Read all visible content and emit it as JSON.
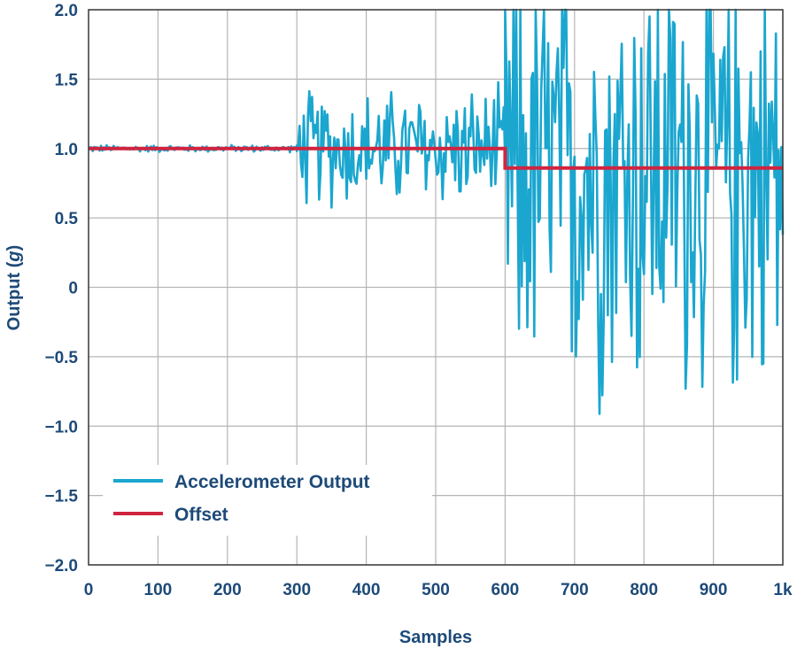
{
  "chart_data": {
    "type": "line",
    "xlabel": "Samples",
    "ylabel_prefix": "Output (",
    "ylabel_unit": "g",
    "ylabel_suffix": ")",
    "xlim": [
      0,
      1000
    ],
    "ylim": [
      -2.0,
      2.0
    ],
    "x_ticks": [
      0,
      100,
      200,
      300,
      400,
      500,
      600,
      700,
      800,
      900,
      1000
    ],
    "x_tick_labels": [
      "0",
      "100",
      "200",
      "300",
      "400",
      "500",
      "600",
      "700",
      "800",
      "900",
      "1k"
    ],
    "y_ticks": [
      2.0,
      1.5,
      1.0,
      0.5,
      0,
      -0.5,
      -1.0,
      -1.5,
      -2.0
    ],
    "y_tick_labels": [
      "2.0",
      "1.5",
      "1.0",
      "0.5",
      "0",
      "−0.5",
      "−1.0",
      "−1.5",
      "−2.0"
    ],
    "grid": true,
    "legend_position": "bottom-left",
    "series": [
      {
        "name": "Accelerometer Output",
        "color": "#1aa6cf",
        "segments": [
          {
            "x_range": [
              0,
              300
            ],
            "mean": 1.0,
            "amplitude": 0.03
          },
          {
            "x_range": [
              300,
              600
            ],
            "mean": 1.0,
            "amplitude": 0.5
          },
          {
            "x_range": [
              600,
              1000
            ],
            "mean": 0.85,
            "amplitude": 2.0
          }
        ]
      },
      {
        "name": "Offset",
        "color": "#d0243f",
        "x": [
          0,
          600,
          600,
          1000
        ],
        "values": [
          1.0,
          1.0,
          0.86,
          0.86
        ]
      }
    ]
  }
}
